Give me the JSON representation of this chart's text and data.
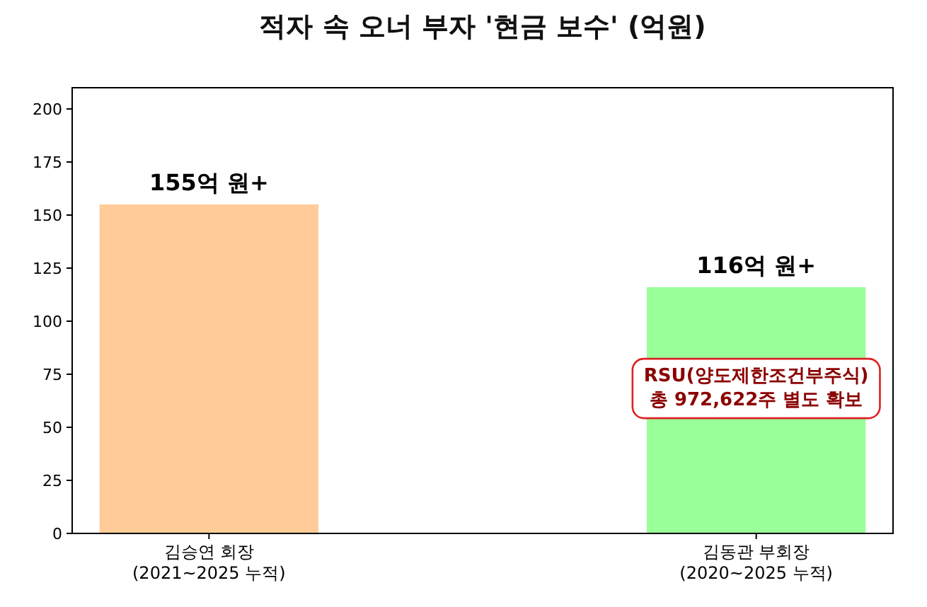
{
  "chart_data": {
    "type": "bar",
    "title": "적자 속 오너 부자 '현금 보수' (억원)",
    "categories": [
      "김승연 회장\n(2021~2025 누적)",
      "김동관 부회장\n(2020~2025 누적)"
    ],
    "values": [
      155,
      116
    ],
    "colors": [
      "#ffcc99",
      "#99ff99"
    ],
    "value_labels": [
      "155억 원+",
      "116억 원+"
    ],
    "ylim": [
      0,
      210
    ],
    "yticks": [
      0,
      25,
      50,
      75,
      100,
      125,
      150,
      175,
      200
    ],
    "grid": false,
    "annotations": [
      "RSU(양도제한조건부주식)\n총 972,622주 별도 확보"
    ]
  }
}
